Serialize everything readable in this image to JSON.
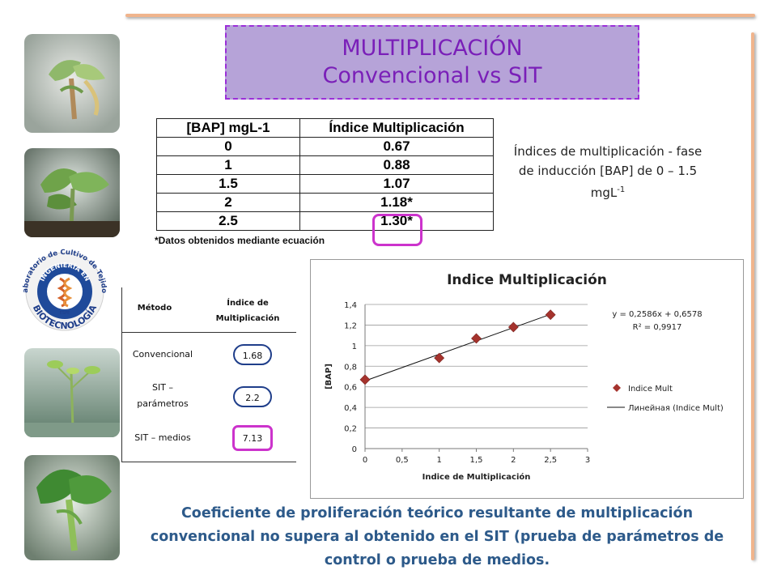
{
  "title": {
    "line1": "MULTIPLICACIÓN",
    "line2": "Convencional vs SIT"
  },
  "bap_table": {
    "headers": [
      "[BAP] mgL-1",
      "Índice Multiplicación"
    ],
    "rows": [
      [
        "0",
        "0.67"
      ],
      [
        "1",
        "0.88"
      ],
      [
        "1.5",
        "1.07"
      ],
      [
        "2",
        "1.18*"
      ],
      [
        "2.5",
        "1.30*"
      ]
    ],
    "note": "*Datos obtenidos mediante ecuación"
  },
  "side_caption": {
    "main": "Índices de multiplicación - fase de inducción [BAP] de 0 – 1.5 mgL",
    "sup": "-1"
  },
  "method_table": {
    "header_method": "Método",
    "header_index": "Índice de Multiplicación",
    "rows": [
      {
        "method": "Convencional",
        "value": "1.68"
      },
      {
        "method": "SIT – parámetros",
        "value": "2.2"
      },
      {
        "method": "SIT – medios",
        "value": "7.13"
      }
    ]
  },
  "logo": {
    "top_text": "Laboratorio de Cultivo de Tejidos",
    "ring_text": "INGENIERÍA EN",
    "bottom_text": "BIOTECNOLOGÍA",
    "small_text": "ESPE"
  },
  "chart_data": {
    "type": "scatter",
    "title": "Indice Multiplicación",
    "xlabel": "Indice de Multiplicación",
    "ylabel": "[BAP]",
    "xlim": [
      0,
      3
    ],
    "ylim": [
      0,
      1.4
    ],
    "x_ticks": [
      "0",
      "0,5",
      "1",
      "1,5",
      "2",
      "2,5",
      "3"
    ],
    "y_ticks": [
      "0",
      "0,2",
      "0,4",
      "0,6",
      "0,8",
      "1",
      "1,2",
      "1,4"
    ],
    "grid": "horizontal",
    "series": [
      {
        "name": "Indice Mult",
        "x": [
          0,
          1,
          1.5,
          2,
          2.5
        ],
        "y": [
          0.67,
          0.88,
          1.07,
          1.18,
          1.3
        ],
        "color": "#a5332d"
      }
    ],
    "trendline": {
      "name": "Линейная (Indice Mult)",
      "slope": 0.2586,
      "intercept": 0.6578,
      "x_range": [
        0,
        2.5
      ]
    },
    "equation": "y = 0,2586x + 0,6578",
    "r_squared": "R² = 0,9917",
    "legend_position": "right"
  },
  "bottom_text": "Coeficiente de proliferación teórico resultante de multiplicación convencional no supera al obtenido en el SIT (prueba de parámetros de control o prueba de medios."
}
